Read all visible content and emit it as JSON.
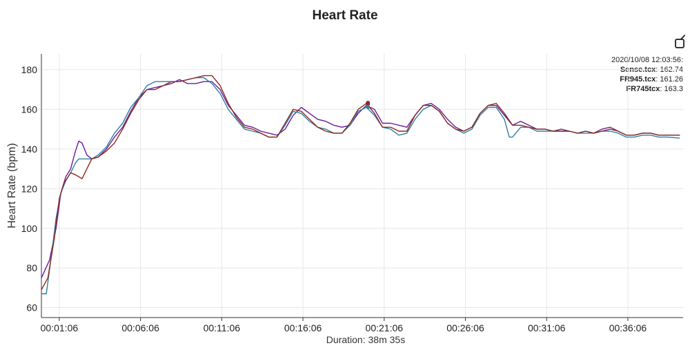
{
  "chart_data": {
    "type": "line",
    "title": "Heart Rate",
    "xlabel": "Duration: 38m 35s",
    "ylabel": "Heart Rate (bpm)",
    "ylim": [
      55,
      188
    ],
    "xlim_minutes": [
      0,
      39.5
    ],
    "yticks": [
      60,
      80,
      100,
      120,
      140,
      160,
      180
    ],
    "xticks": [
      {
        "label": "00:01:06",
        "minutes": 1.1
      },
      {
        "label": "00:06:06",
        "minutes": 6.1
      },
      {
        "label": "00:11:06",
        "minutes": 11.1
      },
      {
        "label": "00:16:06",
        "minutes": 16.1
      },
      {
        "label": "00:21:06",
        "minutes": 21.1
      },
      {
        "label": "00:26:06",
        "minutes": 26.1
      },
      {
        "label": "00:31:06",
        "minutes": 31.1
      },
      {
        "label": "00:36:06",
        "minutes": 36.1
      }
    ],
    "grid": true,
    "legend_position": "top-right",
    "cursor": {
      "timestamp": "2020/10/08 12:03:56:",
      "minutes": 20.1
    },
    "series": [
      {
        "name": "Sense.tcx",
        "color": "#6a1b9a",
        "cursor_value": "162.74",
        "points": [
          [
            0,
            75
          ],
          [
            0.5,
            84
          ],
          [
            0.9,
            100
          ],
          [
            1.2,
            118
          ],
          [
            1.5,
            126
          ],
          [
            1.8,
            130
          ],
          [
            2.1,
            139
          ],
          [
            2.3,
            144
          ],
          [
            2.5,
            143
          ],
          [
            2.8,
            137
          ],
          [
            3.1,
            135
          ],
          [
            3.5,
            136
          ],
          [
            4,
            140
          ],
          [
            4.5,
            146
          ],
          [
            5,
            151
          ],
          [
            5.5,
            159
          ],
          [
            6,
            166
          ],
          [
            6.5,
            170
          ],
          [
            7,
            171
          ],
          [
            7.5,
            172
          ],
          [
            8,
            173
          ],
          [
            8.5,
            175
          ],
          [
            9,
            173
          ],
          [
            9.5,
            173
          ],
          [
            10,
            174
          ],
          [
            10.5,
            174
          ],
          [
            11,
            170
          ],
          [
            11.5,
            162
          ],
          [
            12,
            157
          ],
          [
            12.5,
            152
          ],
          [
            13,
            151
          ],
          [
            13.5,
            149
          ],
          [
            14,
            148
          ],
          [
            14.5,
            147
          ],
          [
            15,
            150
          ],
          [
            15.5,
            157
          ],
          [
            16,
            161
          ],
          [
            16.5,
            158
          ],
          [
            17,
            155
          ],
          [
            17.5,
            154
          ],
          [
            18,
            152
          ],
          [
            18.5,
            151
          ],
          [
            19,
            152
          ],
          [
            19.5,
            158
          ],
          [
            20,
            162
          ],
          [
            20.5,
            160
          ],
          [
            21,
            153
          ],
          [
            21.5,
            153
          ],
          [
            22,
            152
          ],
          [
            22.5,
            151
          ],
          [
            23,
            157
          ],
          [
            23.5,
            162
          ],
          [
            24,
            163
          ],
          [
            24.5,
            160
          ],
          [
            25,
            155
          ],
          [
            25.5,
            151
          ],
          [
            26,
            149
          ],
          [
            26.5,
            151
          ],
          [
            27,
            158
          ],
          [
            27.5,
            162
          ],
          [
            28,
            162
          ],
          [
            28.5,
            157
          ],
          [
            29,
            152
          ],
          [
            29.5,
            154
          ],
          [
            30,
            152
          ],
          [
            30.5,
            150
          ],
          [
            31,
            150
          ],
          [
            31.5,
            149
          ],
          [
            32,
            150
          ],
          [
            32.5,
            149
          ],
          [
            33,
            148
          ],
          [
            33.5,
            149
          ],
          [
            34,
            148
          ],
          [
            34.5,
            150
          ],
          [
            35,
            151
          ],
          [
            35.5,
            149
          ],
          [
            36,
            147
          ],
          [
            36.5,
            147
          ],
          [
            37,
            148
          ],
          [
            37.5,
            148
          ],
          [
            38,
            147
          ],
          [
            38.5,
            147
          ],
          [
            39.3,
            147
          ]
        ]
      },
      {
        "name": "FR945.tcx",
        "color": "#2e7fa0",
        "cursor_value": "161.26",
        "points": [
          [
            0,
            67
          ],
          [
            0.3,
            67
          ],
          [
            0.6,
            85
          ],
          [
            0.9,
            105
          ],
          [
            1.2,
            118
          ],
          [
            1.5,
            124
          ],
          [
            1.8,
            128
          ],
          [
            2.1,
            133
          ],
          [
            2.3,
            135
          ],
          [
            2.8,
            135
          ],
          [
            3.1,
            135
          ],
          [
            3.5,
            137
          ],
          [
            4,
            141
          ],
          [
            4.5,
            148
          ],
          [
            5,
            153
          ],
          [
            5.5,
            161
          ],
          [
            6,
            166
          ],
          [
            6.5,
            172
          ],
          [
            7,
            174
          ],
          [
            7.5,
            174
          ],
          [
            8,
            174
          ],
          [
            8.5,
            174
          ],
          [
            9,
            175
          ],
          [
            9.5,
            176
          ],
          [
            10,
            176
          ],
          [
            10.5,
            173
          ],
          [
            11,
            168
          ],
          [
            11.5,
            160
          ],
          [
            12,
            155
          ],
          [
            12.5,
            150
          ],
          [
            13,
            149
          ],
          [
            13.5,
            148
          ],
          [
            14,
            146
          ],
          [
            14.5,
            146
          ],
          [
            15,
            152
          ],
          [
            15.5,
            159
          ],
          [
            16,
            158
          ],
          [
            16.5,
            154
          ],
          [
            17,
            151
          ],
          [
            17.5,
            150
          ],
          [
            18,
            148
          ],
          [
            18.5,
            148
          ],
          [
            19,
            152
          ],
          [
            19.5,
            159
          ],
          [
            20,
            161
          ],
          [
            20.5,
            157
          ],
          [
            21,
            151
          ],
          [
            21.5,
            150
          ],
          [
            22,
            147
          ],
          [
            22.5,
            148
          ],
          [
            23,
            155
          ],
          [
            23.5,
            160
          ],
          [
            24,
            162
          ],
          [
            24.5,
            159
          ],
          [
            25,
            153
          ],
          [
            25.5,
            150
          ],
          [
            26,
            148
          ],
          [
            26.5,
            150
          ],
          [
            27,
            157
          ],
          [
            27.5,
            161
          ],
          [
            28,
            161
          ],
          [
            28.5,
            155
          ],
          [
            28.8,
            146
          ],
          [
            29,
            146
          ],
          [
            29.5,
            151
          ],
          [
            30,
            151
          ],
          [
            30.5,
            149
          ],
          [
            31,
            149
          ],
          [
            31.5,
            149
          ],
          [
            32,
            149
          ],
          [
            32.5,
            149
          ],
          [
            33,
            148
          ],
          [
            33.5,
            148
          ],
          [
            34,
            148
          ],
          [
            34.5,
            149
          ],
          [
            35,
            149
          ],
          [
            35.5,
            148
          ],
          [
            36,
            146
          ],
          [
            36.5,
            146
          ],
          [
            37,
            147
          ],
          [
            37.5,
            147
          ],
          [
            38,
            146
          ],
          [
            38.5,
            146
          ],
          [
            39.3,
            145.5
          ]
        ]
      },
      {
        "name": "FR745tcx",
        "color": "#8b2a1a",
        "cursor_value": "163.3",
        "points": [
          [
            0,
            69
          ],
          [
            0.4,
            75
          ],
          [
            0.8,
            95
          ],
          [
            1.1,
            115
          ],
          [
            1.4,
            123
          ],
          [
            1.8,
            128
          ],
          [
            2.1,
            127
          ],
          [
            2.5,
            125
          ],
          [
            2.8,
            130
          ],
          [
            3.1,
            135
          ],
          [
            3.5,
            136
          ],
          [
            4,
            139
          ],
          [
            4.5,
            143
          ],
          [
            5,
            150
          ],
          [
            5.5,
            158
          ],
          [
            6,
            165
          ],
          [
            6.5,
            170
          ],
          [
            7,
            170
          ],
          [
            7.5,
            172
          ],
          [
            8,
            174
          ],
          [
            8.5,
            174
          ],
          [
            9,
            175
          ],
          [
            9.5,
            176
          ],
          [
            10,
            177
          ],
          [
            10.5,
            177
          ],
          [
            11,
            172
          ],
          [
            11.5,
            163
          ],
          [
            12,
            156
          ],
          [
            12.5,
            151
          ],
          [
            13,
            150
          ],
          [
            13.5,
            148
          ],
          [
            14,
            146
          ],
          [
            14.5,
            146
          ],
          [
            15,
            153
          ],
          [
            15.5,
            160
          ],
          [
            16,
            159
          ],
          [
            16.5,
            155
          ],
          [
            17,
            151
          ],
          [
            17.5,
            149
          ],
          [
            18,
            148
          ],
          [
            18.5,
            148
          ],
          [
            19,
            153
          ],
          [
            19.5,
            160
          ],
          [
            20,
            163
          ],
          [
            20.5,
            158
          ],
          [
            21,
            151
          ],
          [
            21.5,
            151
          ],
          [
            22,
            149
          ],
          [
            22.5,
            149
          ],
          [
            23,
            157
          ],
          [
            23.5,
            162
          ],
          [
            24,
            162
          ],
          [
            24.5,
            159
          ],
          [
            25,
            153
          ],
          [
            25.5,
            150
          ],
          [
            26,
            149
          ],
          [
            26.5,
            151
          ],
          [
            27,
            158
          ],
          [
            27.5,
            162
          ],
          [
            28,
            163
          ],
          [
            28.5,
            158
          ],
          [
            29,
            152
          ],
          [
            29.5,
            152
          ],
          [
            30,
            151
          ],
          [
            30.5,
            150
          ],
          [
            31,
            150
          ],
          [
            31.5,
            149
          ],
          [
            32,
            149
          ],
          [
            32.5,
            149
          ],
          [
            33,
            148
          ],
          [
            33.5,
            149
          ],
          [
            34,
            148
          ],
          [
            34.5,
            149
          ],
          [
            35,
            150
          ],
          [
            35.5,
            149
          ],
          [
            36,
            147
          ],
          [
            36.5,
            147
          ],
          [
            37,
            148
          ],
          [
            37.5,
            148
          ],
          [
            38,
            147
          ],
          [
            38.5,
            147
          ],
          [
            39.3,
            147
          ]
        ]
      }
    ]
  }
}
